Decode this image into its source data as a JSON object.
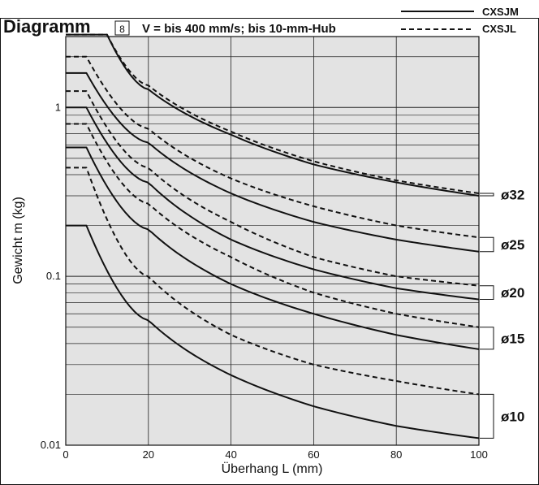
{
  "chart_data": {
    "type": "line",
    "title": "Diagramm",
    "title_badge": "8",
    "subtitle": "V = bis 400 mm/s; bis 10-mm-Hub",
    "xlabel": "Überhang L (mm)",
    "ylabel": "Gewicht m (kg)",
    "xlim": [
      0,
      100
    ],
    "ylim": [
      0.01,
      3
    ],
    "yscale": "log",
    "grid": true,
    "xticks": [
      0,
      20,
      40,
      60,
      80,
      100
    ],
    "yticks": [
      {
        "value": 0.01,
        "label": "0.01"
      },
      {
        "value": 0.1,
        "label": "0.1"
      },
      {
        "value": 1,
        "label": "1"
      }
    ],
    "legend": {
      "position": "top-right",
      "entries": [
        {
          "label": "CXSJM",
          "style": "solid"
        },
        {
          "label": "CXSJL",
          "style": "dashed"
        }
      ]
    },
    "groups": [
      {
        "label": "ø32",
        "values_at_100": [
          0.3,
          0.31
        ]
      },
      {
        "label": "ø25",
        "values_at_100": [
          0.14,
          0.17
        ]
      },
      {
        "label": "ø20",
        "values_at_100": [
          0.073,
          0.088
        ]
      },
      {
        "label": "ø15",
        "values_at_100": [
          0.037,
          0.05
        ]
      },
      {
        "label": "ø10",
        "values_at_100": [
          0.011,
          0.02
        ]
      }
    ],
    "series": [
      {
        "model": "CXSJL",
        "style": "dashed",
        "group": "ø32",
        "plateau": 2.7,
        "x_break": 10,
        "x": [
          0,
          10,
          20,
          40,
          60,
          80,
          100
        ],
        "y": [
          2.7,
          2.7,
          1.35,
          0.72,
          0.48,
          0.37,
          0.31
        ]
      },
      {
        "model": "CXSJM",
        "style": "solid",
        "group": "ø32",
        "plateau": 2.7,
        "x_break": 10,
        "x": [
          0,
          10,
          20,
          40,
          60,
          80,
          100
        ],
        "y": [
          2.7,
          2.7,
          1.28,
          0.69,
          0.46,
          0.36,
          0.3
        ]
      },
      {
        "model": "CXSJL",
        "style": "dashed",
        "group": "ø25",
        "plateau": 2.0,
        "x_break": 5,
        "x": [
          0,
          5,
          20,
          40,
          60,
          80,
          100
        ],
        "y": [
          2.0,
          2.0,
          0.75,
          0.38,
          0.26,
          0.2,
          0.17
        ]
      },
      {
        "model": "CXSJM",
        "style": "solid",
        "group": "ø25",
        "plateau": 1.6,
        "x_break": 5,
        "x": [
          0,
          5,
          20,
          40,
          60,
          80,
          100
        ],
        "y": [
          1.6,
          1.6,
          0.62,
          0.31,
          0.21,
          0.165,
          0.14
        ]
      },
      {
        "model": "CXSJL",
        "style": "dashed",
        "group": "ø20",
        "plateau": 1.25,
        "x_break": 5,
        "x": [
          0,
          5,
          20,
          40,
          60,
          80,
          100
        ],
        "y": [
          1.25,
          1.25,
          0.44,
          0.21,
          0.13,
          0.1,
          0.088
        ]
      },
      {
        "model": "CXSJM",
        "style": "solid",
        "group": "ø20",
        "plateau": 1.0,
        "x_break": 5,
        "x": [
          0,
          5,
          20,
          40,
          60,
          80,
          100
        ],
        "y": [
          1.0,
          1.0,
          0.36,
          0.165,
          0.11,
          0.085,
          0.073
        ]
      },
      {
        "model": "CXSJL",
        "style": "dashed",
        "group": "ø15",
        "plateau": 0.8,
        "x_break": 5,
        "x": [
          0,
          5,
          20,
          40,
          60,
          80,
          100
        ],
        "y": [
          0.8,
          0.8,
          0.27,
          0.13,
          0.08,
          0.06,
          0.05
        ]
      },
      {
        "model": "CXSJM",
        "style": "solid",
        "group": "ø15",
        "plateau": 0.58,
        "x_break": 5,
        "x": [
          0,
          5,
          20,
          40,
          60,
          80,
          100
        ],
        "y": [
          0.58,
          0.58,
          0.19,
          0.09,
          0.06,
          0.045,
          0.037
        ]
      },
      {
        "model": "CXSJL",
        "style": "dashed",
        "group": "ø10",
        "plateau": 0.44,
        "x_break": 5,
        "x": [
          0,
          5,
          20,
          40,
          60,
          80,
          100
        ],
        "y": [
          0.44,
          0.44,
          0.1,
          0.045,
          0.03,
          0.024,
          0.02
        ]
      },
      {
        "model": "CXSJM",
        "style": "solid",
        "group": "ø10",
        "plateau": 0.2,
        "x_break": 5,
        "x": [
          0,
          5,
          20,
          40,
          60,
          80,
          100
        ],
        "y": [
          0.2,
          0.2,
          0.055,
          0.026,
          0.017,
          0.013,
          0.011
        ]
      }
    ]
  }
}
